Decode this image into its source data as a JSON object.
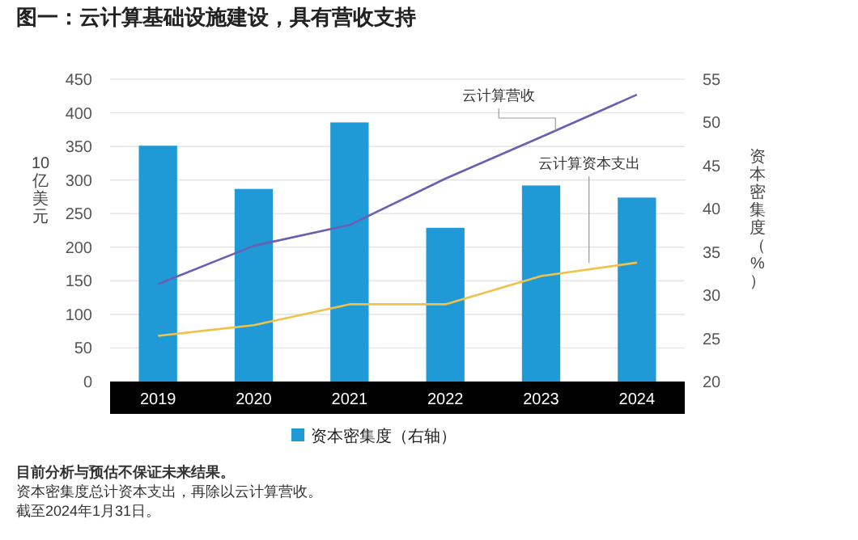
{
  "chart_data": {
    "type": "bar",
    "title": "图一：云计算基础设施建设，具有营收支持",
    "ylabel": "10亿美元",
    "y2label": "资本密集度（%）",
    "categories": [
      "2019",
      "2020",
      "2021",
      "2022",
      "2023",
      "2024"
    ],
    "series": [
      {
        "name": "资本密集度（右轴）",
        "axis": "y2",
        "color": "#1f9ad6",
        "values": [
          47.3,
          42.3,
          50.0,
          37.8,
          42.7,
          41.3
        ]
      },
      {
        "name": "云计算营收",
        "type": "line",
        "color": "#6a5fb0",
        "values": [
          145,
          202,
          233,
          302,
          364,
          427
        ]
      },
      {
        "name": "云计算资本支出",
        "type": "line",
        "color": "#f0c24a",
        "values": [
          68,
          84,
          115,
          115,
          157,
          177
        ]
      }
    ],
    "ylim": [
      0,
      450
    ],
    "yticks": [
      0,
      50,
      100,
      150,
      200,
      250,
      300,
      350,
      400,
      450
    ],
    "y2lim": [
      20,
      55
    ],
    "y2ticks": [
      20,
      25,
      30,
      35,
      40,
      45,
      50,
      55
    ],
    "grid": "y",
    "legend": "bottom",
    "annotations": [
      "目前分析与预估不保证未来结果。",
      "资本密集度总计资本支出，再除以云计算营收。",
      "截至2024年1月31日。"
    ]
  }
}
